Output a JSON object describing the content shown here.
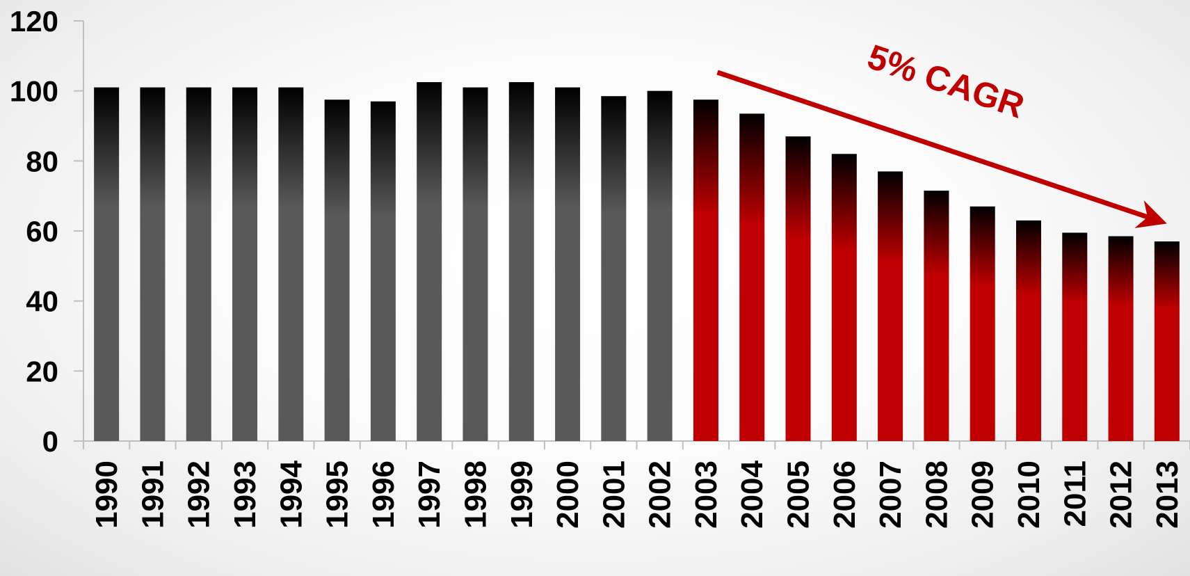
{
  "chart_data": {
    "type": "bar",
    "title": "",
    "xlabel": "",
    "ylabel": "",
    "ylim": [
      0,
      120
    ],
    "yticks": [
      0,
      20,
      40,
      60,
      80,
      100,
      120
    ],
    "grid": false,
    "legend": "none",
    "categories": [
      "1990",
      "1991",
      "1992",
      "1993",
      "1994",
      "1995",
      "1996",
      "1997",
      "1998",
      "1999",
      "2000",
      "2001",
      "2002",
      "2003",
      "2004",
      "2005",
      "2006",
      "2007",
      "2008",
      "2009",
      "2010",
      "2011",
      "2012",
      "2013"
    ],
    "values": [
      101,
      101,
      101,
      101,
      101,
      97.5,
      97,
      102.5,
      101,
      102.5,
      101,
      98.5,
      100,
      97.5,
      93.5,
      87,
      82,
      77,
      71.5,
      67,
      63,
      59.5,
      58.5,
      57
    ],
    "bar_style": [
      "gray",
      "gray",
      "gray",
      "gray",
      "gray",
      "gray",
      "gray",
      "gray",
      "gray",
      "gray",
      "gray",
      "gray",
      "gray",
      "red",
      "red",
      "red",
      "red",
      "red",
      "red",
      "red",
      "red",
      "red",
      "red",
      "red"
    ],
    "annotation": {
      "text": "5% CAGR",
      "from_category": "2003",
      "to_category": "2013"
    },
    "colors": {
      "gray_bar_bottom": "#595959",
      "red_bar_bottom": "#c00000",
      "bar_top": "#000000",
      "annotation": "#c00000",
      "axis": "#bfbfbf"
    }
  }
}
